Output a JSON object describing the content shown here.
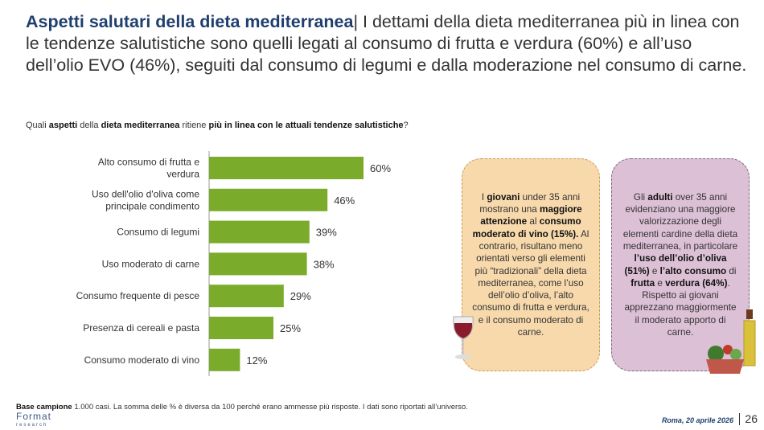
{
  "title": {
    "bold": "Aspetti salutari della dieta mediterranea",
    "rest": "| I dettami della dieta mediterranea più in linea con le tendenze salutistiche sono quelli legati al consumo di frutta e verdura (60%) e all’uso dell’olio EVO (46%), seguiti dal consumo di legumi e dalla moderazione nel consumo di carne."
  },
  "question": [
    "Quali ",
    "aspetti",
    " della ",
    "dieta mediterranea",
    " ritiene ",
    "più in linea con le attuali tendenze salutistiche",
    "?"
  ],
  "chart_data": {
    "type": "bar",
    "orientation": "horizontal",
    "categories": [
      "Alto consumo di frutta e verdura",
      "Uso dell'olio d'oliva come principale condimento",
      "Consumo di legumi",
      "Uso moderato di carne",
      "Consumo frequente di pesce",
      "Presenza di cereali e pasta",
      "Consumo moderato di vino"
    ],
    "values": [
      60,
      46,
      39,
      38,
      29,
      25,
      12
    ],
    "labels": [
      "60%",
      "46%",
      "39%",
      "38%",
      "29%",
      "25%",
      "12%"
    ],
    "color": "#7bab2a",
    "xlim": [
      0,
      100
    ]
  },
  "box1": {
    "parts": [
      [
        "I ",
        0
      ],
      [
        "giovani",
        1
      ],
      [
        " under 35 anni mostrano una ",
        0
      ],
      [
        "maggiore attenzione",
        1
      ],
      [
        " al ",
        0
      ],
      [
        "consumo moderato di vino (15%).",
        1
      ],
      [
        " Al contrario, risultano meno orientati verso gli elementi più “tradizionali” della dieta mediterranea, come l’uso dell’olio d’oliva, l’alto consumo di frutta e verdura, e il consumo moderato di carne.",
        0
      ]
    ]
  },
  "box2": {
    "parts": [
      [
        "Gli ",
        0
      ],
      [
        "adulti",
        1
      ],
      [
        " over 35 anni evidenziano una maggiore valorizzazione degli elementi cardine della dieta mediterranea, in particolare ",
        0
      ],
      [
        "l’uso dell’olio d’oliva (51%)",
        1
      ],
      [
        " e ",
        0
      ],
      [
        "l’alto consumo",
        1
      ],
      [
        " di ",
        0
      ],
      [
        "frutta",
        1
      ],
      [
        " e ",
        0
      ],
      [
        "verdura (64%)",
        1
      ],
      [
        ". Rispetto ai giovani apprezzano maggiormente il moderato apporto di carne.",
        0
      ]
    ]
  },
  "footer": {
    "bold": "Base campione",
    "text": " 1.000 casi. La somma delle % è diversa da 100 perché erano ammesse più risposte. I dati sono riportati all’universo."
  },
  "logo": {
    "name": "Format",
    "sub": "research"
  },
  "date": "Roma, 20 aprile 2026",
  "page": "26"
}
